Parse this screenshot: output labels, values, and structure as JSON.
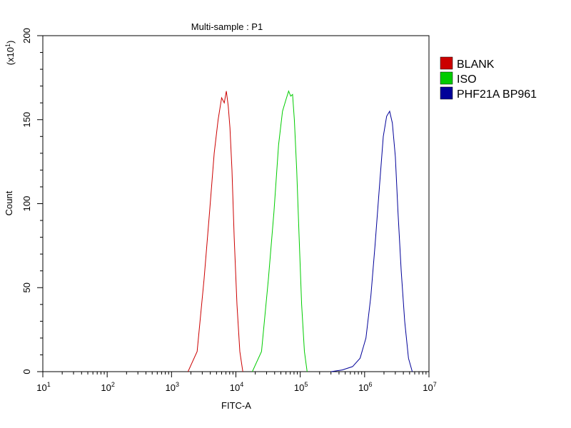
{
  "chart_data": {
    "type": "line",
    "title": "Multi-sample : P1",
    "xlabel": "FITC-A",
    "ylabel": "Count",
    "y_multiplier_label": "(x10",
    "y_multiplier_exp": "1",
    "y_multiplier_close": ")",
    "x_scale": "log",
    "xlim": [
      10,
      10000000
    ],
    "ylim": [
      0,
      200
    ],
    "x_ticks": [
      {
        "base": "10",
        "exp": "1"
      },
      {
        "base": "10",
        "exp": "2"
      },
      {
        "base": "10",
        "exp": "3"
      },
      {
        "base": "10",
        "exp": "4"
      },
      {
        "base": "10",
        "exp": "5"
      },
      {
        "base": "10",
        "exp": "6"
      },
      {
        "base": "10",
        "exp": "7"
      }
    ],
    "y_ticks": [
      "0",
      "50",
      "100",
      "150",
      "200"
    ],
    "legend_position": "right",
    "series": [
      {
        "name": "BLANK",
        "color": "#cc0000",
        "x": [
          1800,
          2500,
          3200,
          3900,
          4600,
          5300,
          6000,
          6600,
          7100,
          7600,
          8100,
          8700,
          9400,
          10400,
          11500,
          12800
        ],
        "y": [
          0,
          12,
          55,
          95,
          130,
          150,
          163,
          160,
          167,
          158,
          145,
          120,
          80,
          40,
          12,
          0
        ]
      },
      {
        "name": "ISO",
        "color": "#00cc00",
        "x": [
          18000,
          25000,
          32000,
          39000,
          46000,
          53000,
          60000,
          66000,
          71000,
          76000,
          81000,
          88000,
          96000,
          105000,
          116000,
          128000
        ],
        "y": [
          0,
          12,
          55,
          95,
          135,
          155,
          162,
          167,
          164,
          165,
          150,
          120,
          80,
          40,
          12,
          0
        ]
      },
      {
        "name": "PHF21A BP961",
        "color": "#000099",
        "x": [
          300000,
          450000,
          650000,
          850000,
          1050000,
          1250000,
          1450000,
          1700000,
          1950000,
          2200000,
          2450000,
          2700000,
          3000000,
          3300000,
          3700000,
          4200000,
          4800000,
          5500000
        ],
        "y": [
          0,
          1,
          3,
          8,
          20,
          45,
          75,
          110,
          140,
          152,
          155,
          148,
          128,
          95,
          60,
          30,
          8,
          0
        ]
      }
    ]
  }
}
